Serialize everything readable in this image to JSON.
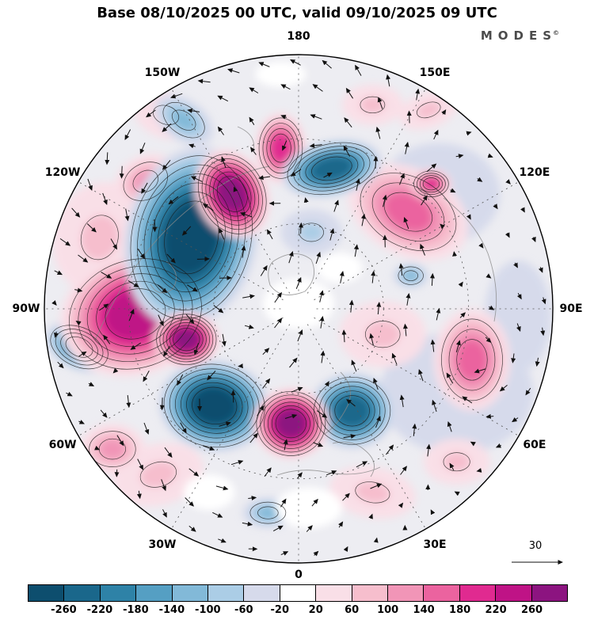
{
  "header": {
    "title": "Base 08/10/2025 00 UTC, valid 09/10/2025 09 UTC",
    "logo_text": "MODES",
    "logo_mark": "©"
  },
  "map": {
    "lon_labels": [
      {
        "text": "180",
        "angle": 0
      },
      {
        "text": "150E",
        "angle": 30
      },
      {
        "text": "120E",
        "angle": 60
      },
      {
        "text": "90E",
        "angle": 90
      },
      {
        "text": "60E",
        "angle": 120
      },
      {
        "text": "30E",
        "angle": 150
      },
      {
        "text": "0",
        "angle": 180
      },
      {
        "text": "30W",
        "angle": 210
      },
      {
        "text": "60W",
        "angle": 240
      },
      {
        "text": "90W",
        "angle": 270
      },
      {
        "text": "120W",
        "angle": 300
      },
      {
        "text": "150W",
        "angle": 330
      }
    ]
  },
  "reference_vector": {
    "label": "30",
    "value": 30
  },
  "colorbar": {
    "ticks": [
      "-260",
      "-220",
      "-180",
      "-140",
      "-100",
      "-60",
      "-20",
      "20",
      "60",
      "100",
      "140",
      "180",
      "220",
      "260"
    ]
  },
  "chart_data": {
    "type": "heatmap",
    "title": "Base 08/10/2025 00 UTC, valid 09/10/2025 09 UTC",
    "projection": "north-polar-stereographic",
    "levels": [
      -260,
      -220,
      -180,
      -140,
      -100,
      -60,
      -20,
      20,
      60,
      100,
      140,
      180,
      220,
      260
    ],
    "palette": [
      "#0d4e6e",
      "#1a678b",
      "#2e82a7",
      "#559fc3",
      "#82b9d8",
      "#abcde6",
      "#d6daeb",
      "#ffffff",
      "#f9dfe7",
      "#f6becd",
      "#f195b7",
      "#eb639f",
      "#e02a90",
      "#bf1386",
      "#8c1480"
    ],
    "wind_reference": 30,
    "legend_position": "bottom",
    "grid": "dashed-graticule-30deg",
    "cells": [
      {
        "x": 0.55,
        "y": -0.45,
        "rx": 0.24,
        "ry": 0.2,
        "rot": 0,
        "peak": -20
      },
      {
        "x": 0.62,
        "y": 0.33,
        "rx": 0.3,
        "ry": 0.24,
        "rot": 0,
        "peak": -20
      },
      {
        "x": 0.86,
        "y": 0.03,
        "rx": 0.13,
        "ry": 0.22,
        "rot": 0,
        "peak": -20
      },
      {
        "x": -0.78,
        "y": -0.28,
        "rx": 0.18,
        "ry": 0.22,
        "rot": 15,
        "peak": 60
      },
      {
        "x": -0.52,
        "y": -0.76,
        "rx": 0.13,
        "ry": 0.09,
        "rot": 20,
        "peak": 60
      },
      {
        "x": 0.29,
        "y": -0.8,
        "rx": 0.12,
        "ry": 0.08,
        "rot": 0,
        "peak": 60
      },
      {
        "x": 0.51,
        "y": -0.78,
        "rx": 0.12,
        "ry": 0.07,
        "rot": -20,
        "peak": 60
      },
      {
        "x": 0.33,
        "y": 0.1,
        "rx": 0.17,
        "ry": 0.13,
        "rot": 0,
        "peak": 60
      },
      {
        "x": 0.29,
        "y": 0.72,
        "rx": 0.17,
        "ry": 0.1,
        "rot": 10,
        "peak": 60
      },
      {
        "x": 0.62,
        "y": 0.6,
        "rx": 0.13,
        "ry": 0.09,
        "rot": 0,
        "peak": 60
      },
      {
        "x": -0.55,
        "y": 0.65,
        "rx": 0.18,
        "ry": 0.12,
        "rot": -15,
        "peak": 60
      },
      {
        "x": -0.73,
        "y": 0.55,
        "rx": 0.13,
        "ry": 0.1,
        "rot": 0,
        "peak": 100
      },
      {
        "x": -0.6,
        "y": -0.5,
        "rx": 0.13,
        "ry": 0.1,
        "rot": -30,
        "peak": 100
      },
      {
        "x": -0.45,
        "y": -0.74,
        "rx": 0.13,
        "ry": 0.08,
        "rot": 35,
        "peak": -100
      },
      {
        "x": 0.44,
        "y": -0.13,
        "rx": 0.07,
        "ry": 0.05,
        "rot": 0,
        "peak": -100
      },
      {
        "x": -0.12,
        "y": 0.8,
        "rx": 0.1,
        "ry": 0.06,
        "rot": 0,
        "peak": -100
      },
      {
        "x": 0.05,
        "y": -0.3,
        "rx": 0.12,
        "ry": 0.09,
        "rot": 0,
        "peak": -60
      },
      {
        "x": 0.0,
        "y": -0.02,
        "rx": 0.14,
        "ry": 0.1,
        "rot": 0,
        "peak": 0
      },
      {
        "x": 0.16,
        "y": -0.16,
        "rx": 0.09,
        "ry": 0.06,
        "rot": 0,
        "peak": 0
      },
      {
        "x": 0.04,
        "y": 0.78,
        "rx": 0.13,
        "ry": 0.08,
        "rot": 0,
        "peak": 0
      },
      {
        "x": -0.35,
        "y": 0.72,
        "rx": 0.1,
        "ry": 0.07,
        "rot": 0,
        "peak": 0
      },
      {
        "x": -0.07,
        "y": -0.92,
        "rx": 0.1,
        "ry": 0.05,
        "rot": 0,
        "peak": 0
      },
      {
        "x": 0.43,
        "y": -0.38,
        "rx": 0.25,
        "ry": 0.17,
        "rot": 28,
        "peak": 140
      },
      {
        "x": 0.52,
        "y": -0.49,
        "rx": 0.08,
        "ry": 0.06,
        "rot": 0,
        "peak": 180
      },
      {
        "x": 0.68,
        "y": 0.2,
        "rx": 0.15,
        "ry": 0.2,
        "rot": 0,
        "peak": 140
      },
      {
        "x": -0.07,
        "y": -0.63,
        "rx": 0.1,
        "ry": 0.14,
        "rot": 0,
        "peak": 180
      },
      {
        "x": -0.86,
        "y": 0.15,
        "rx": 0.14,
        "ry": 0.09,
        "rot": 25,
        "peak": -180
      },
      {
        "x": 0.13,
        "y": -0.55,
        "rx": 0.2,
        "ry": 0.11,
        "rot": -12,
        "peak": -220
      },
      {
        "x": 0.21,
        "y": 0.4,
        "rx": 0.17,
        "ry": 0.15,
        "rot": 0,
        "peak": -220
      },
      {
        "x": -0.64,
        "y": 0.02,
        "rx": 0.3,
        "ry": 0.24,
        "rot": -18,
        "peak": 220
      },
      {
        "x": -0.42,
        "y": -0.28,
        "rx": 0.26,
        "ry": 0.36,
        "rot": 12,
        "peak": -260
      },
      {
        "x": -0.33,
        "y": 0.38,
        "rx": 0.22,
        "ry": 0.18,
        "rot": 8,
        "peak": -260
      },
      {
        "x": -0.26,
        "y": -0.45,
        "rx": 0.14,
        "ry": 0.18,
        "rot": -25,
        "peak": 260
      },
      {
        "x": -0.44,
        "y": 0.12,
        "rx": 0.13,
        "ry": 0.11,
        "rot": 0,
        "peak": 260
      },
      {
        "x": -0.03,
        "y": 0.45,
        "rx": 0.15,
        "ry": 0.14,
        "rot": 0,
        "peak": 260
      }
    ]
  }
}
